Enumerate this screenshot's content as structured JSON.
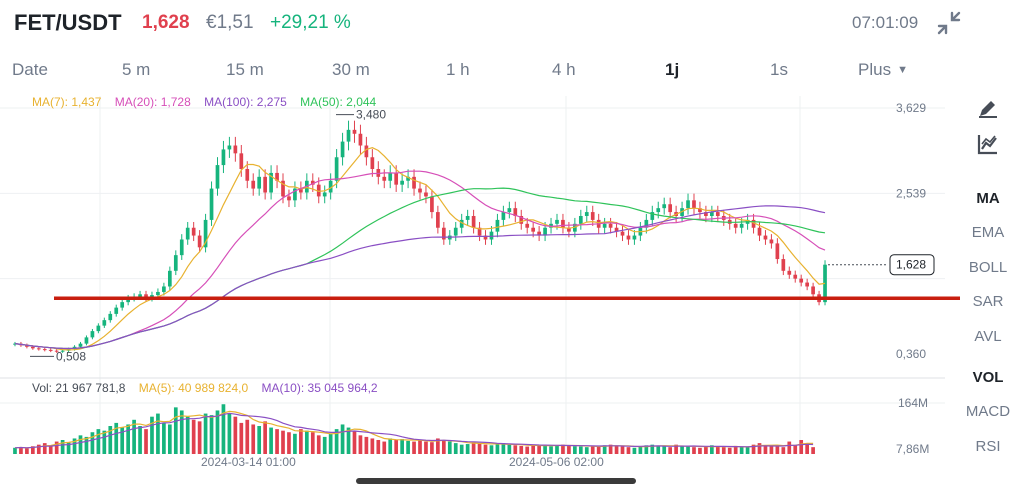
{
  "header": {
    "pair": "FET/USDT",
    "price": "1,628",
    "fiat_price": "€1,51",
    "change": "+29,21 %",
    "time": "07:01:09",
    "collapse_icon": "collapse-arrows-icon"
  },
  "intervals": [
    {
      "label": "Date",
      "active": false
    },
    {
      "label": "5 m",
      "active": false
    },
    {
      "label": "15 m",
      "active": false
    },
    {
      "label": "30 m",
      "active": false
    },
    {
      "label": "1 h",
      "active": false
    },
    {
      "label": "4 h",
      "active": false
    },
    {
      "label": "1j",
      "active": true
    },
    {
      "label": "1s",
      "active": false
    }
  ],
  "more": {
    "label": "Plus",
    "icon": "caret-down-icon"
  },
  "ma_legend": [
    {
      "text": "MA(7): 1,437",
      "color": "#e8b230"
    },
    {
      "text": "MA(20): 1,728",
      "color": "#d64fb8"
    },
    {
      "text": "MA(100): 2,275",
      "color": "#8a4fc4"
    },
    {
      "text": "MA(50): 2,044",
      "color": "#2fc35a"
    }
  ],
  "vol_legend": [
    {
      "text": "Vol: 21 967 781,8",
      "color": "#474d57"
    },
    {
      "text": "MA(5): 40 989 824,0",
      "color": "#e8b230"
    },
    {
      "text": "MA(10): 35 045 964,2",
      "color": "#8a4fc4"
    }
  ],
  "side_tools": [
    {
      "label": "MA",
      "active": true
    },
    {
      "label": "EMA",
      "active": false
    },
    {
      "label": "BOLL",
      "active": false
    },
    {
      "label": "SAR",
      "active": false
    },
    {
      "label": "AVL",
      "active": false
    },
    {
      "label": "VOL",
      "active": true
    },
    {
      "label": "MACD",
      "active": false
    },
    {
      "label": "RSI",
      "active": false
    }
  ],
  "side_icons": [
    "draw-pen-icon",
    "indicator-chart-icon"
  ],
  "colors": {
    "up": "#16b47d",
    "down": "#e0404e",
    "line": "#c81e0f",
    "grid": "#eef0f2",
    "axis_text": "#707a8a"
  },
  "chart_data": {
    "type": "candlestick",
    "price_axis_labels": [
      "3,629",
      "2,539",
      "0,360"
    ],
    "volume_axis_labels": [
      "164M",
      "7,86M"
    ],
    "x_tick_labels": [
      "2024-03-14 01:00",
      "2024-05-06 02:00"
    ],
    "current_price_label": "1,628",
    "annotations": [
      "3,480",
      "0,508"
    ],
    "high_marker": 3.48,
    "low_marker": 0.508,
    "ylim": [
      0.36,
      3.629
    ],
    "volume_ylim": [
      0,
      164
    ],
    "horizontal_line_price": 1.2,
    "ma7_last": 1.437,
    "ma20_last": 1.728,
    "ma50_last": 2.044,
    "ma100_last": 2.275,
    "close_path": [
      0.62,
      0.6,
      0.58,
      0.56,
      0.55,
      0.54,
      0.53,
      0.52,
      0.53,
      0.55,
      0.58,
      0.62,
      0.7,
      0.78,
      0.85,
      0.92,
      1.0,
      1.08,
      1.15,
      1.2,
      1.22,
      1.25,
      1.2,
      1.24,
      1.28,
      1.35,
      1.55,
      1.75,
      1.95,
      2.1,
      2.0,
      1.85,
      2.2,
      2.6,
      2.9,
      3.1,
      3.15,
      3.05,
      2.85,
      2.7,
      2.6,
      2.75,
      2.55,
      2.8,
      2.7,
      2.5,
      2.45,
      2.6,
      2.55,
      2.7,
      2.65,
      2.5,
      2.55,
      2.7,
      3.0,
      3.2,
      3.35,
      3.3,
      3.15,
      3.0,
      2.85,
      2.75,
      2.7,
      2.8,
      2.65,
      2.7,
      2.75,
      2.6,
      2.55,
      2.5,
      2.3,
      2.1,
      1.95,
      2.0,
      2.1,
      2.2,
      2.25,
      2.1,
      2.0,
      1.95,
      2.05,
      2.2,
      2.3,
      2.35,
      2.25,
      2.15,
      2.1,
      2.05,
      2.0,
      2.1,
      2.15,
      2.2,
      2.1,
      2.05,
      2.15,
      2.25,
      2.3,
      2.2,
      2.1,
      2.15,
      2.1,
      2.05,
      2.0,
      1.95,
      2.0,
      2.1,
      2.2,
      2.3,
      2.35,
      2.4,
      2.3,
      2.25,
      2.35,
      2.45,
      2.35,
      2.3,
      2.25,
      2.3,
      2.25,
      2.2,
      2.15,
      2.1,
      2.15,
      2.2,
      2.1,
      2.0,
      1.95,
      1.9,
      1.7,
      1.55,
      1.5,
      1.45,
      1.4,
      1.35,
      1.25,
      1.15,
      1.628
    ],
    "volume_path": [
      20,
      22,
      18,
      25,
      30,
      35,
      28,
      40,
      45,
      38,
      50,
      60,
      55,
      70,
      80,
      75,
      90,
      100,
      85,
      95,
      110,
      90,
      80,
      120,
      130,
      100,
      95,
      150,
      140,
      120,
      110,
      105,
      130,
      125,
      140,
      160,
      130,
      120,
      100,
      110,
      95,
      90,
      105,
      85,
      80,
      75,
      70,
      65,
      80,
      75,
      70,
      60,
      55,
      65,
      80,
      95,
      85,
      75,
      60,
      55,
      50,
      45,
      40,
      50,
      45,
      48,
      42,
      40,
      45,
      40,
      38,
      50,
      45,
      40,
      35,
      30,
      32,
      38,
      35,
      30,
      28,
      32,
      35,
      30,
      28,
      26,
      24,
      30,
      28,
      26,
      25,
      28,
      30,
      28,
      25,
      24,
      22,
      26,
      24,
      28,
      30,
      26,
      24,
      22,
      20,
      25,
      28,
      30,
      26,
      24,
      22,
      30,
      26,
      24,
      22,
      20,
      25,
      28,
      24,
      22,
      20,
      26,
      24,
      22,
      30,
      35,
      28,
      26,
      24,
      22,
      40,
      28,
      45,
      35,
      22
    ]
  }
}
